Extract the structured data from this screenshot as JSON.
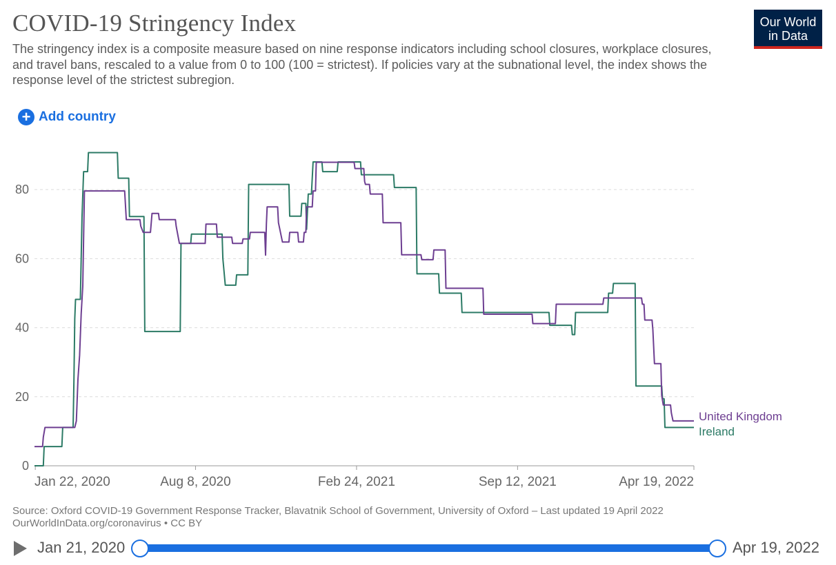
{
  "header": {
    "title": "COVID-19 Stringency Index",
    "subtitle": "The stringency index is a composite measure based on nine response indicators including school closures, workplace closures, and travel bans, rescaled to a value from 0 to 100 (100 = strictest). If policies vary at the subnational level, the index shows the response level of the strictest subregion.",
    "logo_line1": "Our World",
    "logo_line2": "in Data"
  },
  "controls": {
    "add_country_label": "Add country",
    "add_icon": "plus-circle-icon"
  },
  "footer": {
    "source_line1": "Source: Oxford COVID-19 Government Response Tracker, Blavatnik School of Government, University of Oxford – Last updated 19 April 2022",
    "source_line2": "OurWorldInData.org/coronavirus • CC BY"
  },
  "timeline": {
    "play_icon": "play-icon",
    "start_label": "Jan 21, 2020",
    "end_label": "Apr 19, 2022"
  },
  "colors": {
    "uk": "#6d3e91",
    "ireland": "#2b7a65",
    "accent": "#1a6fe0",
    "logo_bg": "#002147",
    "logo_bar": "#ce261e"
  },
  "chart_data": {
    "type": "line",
    "title": "COVID-19 Stringency Index",
    "xlabel": "",
    "ylabel": "",
    "x_range": [
      "2020-01-21",
      "2022-04-19"
    ],
    "ylim": [
      0,
      92
    ],
    "y_ticks": [
      0,
      20,
      40,
      60,
      80
    ],
    "x_ticks": [
      {
        "date": "2020-01-22",
        "label": "Jan 22, 2020"
      },
      {
        "date": "2020-08-08",
        "label": "Aug 8, 2020"
      },
      {
        "date": "2021-02-24",
        "label": "Feb 24, 2021"
      },
      {
        "date": "2021-09-12",
        "label": "Sep 12, 2021"
      },
      {
        "date": "2022-04-19",
        "label": "Apr 19, 2022"
      }
    ],
    "grid": "horizontal dashed",
    "legend": "line-end labels",
    "series": [
      {
        "name": "United Kingdom",
        "color": "#6d3e91",
        "points": [
          [
            "2020-01-21",
            5.56
          ],
          [
            "2020-01-31",
            5.56
          ],
          [
            "2020-02-01",
            8.3
          ],
          [
            "2020-02-03",
            11.1
          ],
          [
            "2020-03-11",
            11.1
          ],
          [
            "2020-03-13",
            13.0
          ],
          [
            "2020-03-15",
            25.0
          ],
          [
            "2020-03-17",
            32.0
          ],
          [
            "2020-03-19",
            44.0
          ],
          [
            "2020-03-21",
            52.0
          ],
          [
            "2020-03-23",
            79.6
          ],
          [
            "2020-05-12",
            79.6
          ],
          [
            "2020-05-14",
            71.3
          ],
          [
            "2020-05-31",
            71.3
          ],
          [
            "2020-06-01",
            69.4
          ],
          [
            "2020-06-04",
            67.6
          ],
          [
            "2020-06-13",
            67.6
          ],
          [
            "2020-06-15",
            73.1
          ],
          [
            "2020-06-23",
            73.1
          ],
          [
            "2020-06-24",
            71.3
          ],
          [
            "2020-07-14",
            71.3
          ],
          [
            "2020-07-15",
            69.4
          ],
          [
            "2020-07-19",
            64.4
          ],
          [
            "2020-08-20",
            64.4
          ],
          [
            "2020-08-21",
            70.0
          ],
          [
            "2020-09-03",
            70.0
          ],
          [
            "2020-09-04",
            66.2
          ],
          [
            "2020-09-22",
            66.2
          ],
          [
            "2020-09-23",
            64.4
          ],
          [
            "2020-10-05",
            64.4
          ],
          [
            "2020-10-06",
            65.7
          ],
          [
            "2020-10-14",
            65.7
          ],
          [
            "2020-10-15",
            67.6
          ],
          [
            "2020-11-02",
            67.6
          ],
          [
            "2020-11-03",
            61.0
          ],
          [
            "2020-11-04",
            70.0
          ],
          [
            "2020-11-05",
            75.0
          ],
          [
            "2020-11-18",
            75.0
          ],
          [
            "2020-11-19",
            70.4
          ],
          [
            "2020-11-24",
            64.8
          ],
          [
            "2020-12-02",
            64.8
          ],
          [
            "2020-12-03",
            67.6
          ],
          [
            "2020-12-13",
            67.6
          ],
          [
            "2020-12-14",
            64.8
          ],
          [
            "2020-12-20",
            64.8
          ],
          [
            "2020-12-21",
            67.6
          ],
          [
            "2020-12-23",
            67.6
          ],
          [
            "2020-12-24",
            75.0
          ],
          [
            "2020-12-31",
            75.0
          ],
          [
            "2021-01-01",
            79.6
          ],
          [
            "2021-01-04",
            79.6
          ],
          [
            "2021-01-05",
            87.9
          ],
          [
            "2021-02-21",
            87.9
          ],
          [
            "2021-02-22",
            86.1
          ],
          [
            "2021-03-05",
            86.1
          ],
          [
            "2021-03-06",
            82.4
          ],
          [
            "2021-03-07",
            81.5
          ],
          [
            "2021-03-12",
            81.5
          ],
          [
            "2021-03-13",
            78.7
          ],
          [
            "2021-03-28",
            78.7
          ],
          [
            "2021-03-29",
            70.4
          ],
          [
            "2021-04-20",
            70.4
          ],
          [
            "2021-04-21",
            61.1
          ],
          [
            "2021-05-15",
            61.1
          ],
          [
            "2021-05-16",
            59.7
          ],
          [
            "2021-05-30",
            59.7
          ],
          [
            "2021-05-31",
            62.5
          ],
          [
            "2021-06-14",
            62.5
          ],
          [
            "2021-06-15",
            51.4
          ],
          [
            "2021-07-31",
            51.4
          ],
          [
            "2021-08-01",
            43.9
          ],
          [
            "2021-09-30",
            43.9
          ],
          [
            "2021-10-01",
            41.2
          ],
          [
            "2021-10-29",
            41.2
          ],
          [
            "2021-10-30",
            46.8
          ],
          [
            "2021-12-27",
            46.8
          ],
          [
            "2021-12-28",
            48.6
          ],
          [
            "2022-02-13",
            48.6
          ],
          [
            "2022-02-14",
            46.8
          ],
          [
            "2022-02-16",
            46.8
          ],
          [
            "2022-02-17",
            42.2
          ],
          [
            "2022-02-26",
            42.2
          ],
          [
            "2022-02-27",
            39.4
          ],
          [
            "2022-03-01",
            29.6
          ],
          [
            "2022-03-09",
            29.6
          ],
          [
            "2022-03-10",
            20.4
          ],
          [
            "2022-03-12",
            17.6
          ],
          [
            "2022-03-21",
            17.6
          ],
          [
            "2022-03-22",
            15.3
          ],
          [
            "2022-03-24",
            13.0
          ],
          [
            "2022-04-19",
            13.0
          ]
        ]
      },
      {
        "name": "Ireland",
        "color": "#2b7a65",
        "points": [
          [
            "2020-01-21",
            0.0
          ],
          [
            "2020-02-01",
            0.0
          ],
          [
            "2020-02-02",
            5.56
          ],
          [
            "2020-02-24",
            5.56
          ],
          [
            "2020-02-25",
            11.1
          ],
          [
            "2020-03-09",
            11.1
          ],
          [
            "2020-03-10",
            25.0
          ],
          [
            "2020-03-11",
            42.6
          ],
          [
            "2020-03-12",
            48.2
          ],
          [
            "2020-03-18",
            48.2
          ],
          [
            "2020-03-20",
            72.0
          ],
          [
            "2020-03-22",
            85.2
          ],
          [
            "2020-03-27",
            85.2
          ],
          [
            "2020-03-28",
            90.7
          ],
          [
            "2020-05-03",
            90.7
          ],
          [
            "2020-05-04",
            83.3
          ],
          [
            "2020-05-17",
            83.3
          ],
          [
            "2020-05-18",
            72.2
          ],
          [
            "2020-06-05",
            72.2
          ],
          [
            "2020-06-06",
            38.9
          ],
          [
            "2020-07-20",
            38.9
          ],
          [
            "2020-07-21",
            64.4
          ],
          [
            "2020-08-02",
            64.4
          ],
          [
            "2020-08-03",
            67.1
          ],
          [
            "2020-09-10",
            67.1
          ],
          [
            "2020-09-11",
            60.0
          ],
          [
            "2020-09-14",
            52.3
          ],
          [
            "2020-09-27",
            52.3
          ],
          [
            "2020-09-28",
            55.3
          ],
          [
            "2020-10-12",
            55.3
          ],
          [
            "2020-10-13",
            81.5
          ],
          [
            "2020-12-02",
            81.5
          ],
          [
            "2020-12-03",
            72.3
          ],
          [
            "2020-12-17",
            72.3
          ],
          [
            "2020-12-18",
            76.0
          ],
          [
            "2020-12-23",
            76.0
          ],
          [
            "2020-12-24",
            68.5
          ],
          [
            "2020-12-26",
            78.7
          ],
          [
            "2020-12-30",
            78.7
          ],
          [
            "2021-01-01",
            88.0
          ],
          [
            "2021-01-12",
            88.0
          ],
          [
            "2021-01-13",
            85.2
          ],
          [
            "2021-01-31",
            85.2
          ],
          [
            "2021-02-01",
            88.0
          ],
          [
            "2021-03-01",
            88.0
          ],
          [
            "2021-03-02",
            84.3
          ],
          [
            "2021-04-11",
            84.3
          ],
          [
            "2021-04-12",
            80.6
          ],
          [
            "2021-05-09",
            80.6
          ],
          [
            "2021-05-10",
            55.6
          ],
          [
            "2021-06-06",
            55.6
          ],
          [
            "2021-06-07",
            50.0
          ],
          [
            "2021-07-04",
            50.0
          ],
          [
            "2021-07-05",
            44.4
          ],
          [
            "2021-10-21",
            44.4
          ],
          [
            "2021-10-22",
            40.7
          ],
          [
            "2021-11-18",
            40.7
          ],
          [
            "2021-11-19",
            38.0
          ],
          [
            "2021-11-22",
            38.0
          ],
          [
            "2021-11-23",
            44.4
          ],
          [
            "2022-01-02",
            44.4
          ],
          [
            "2022-01-03",
            50.0
          ],
          [
            "2022-01-08",
            50.0
          ],
          [
            "2022-01-09",
            52.8
          ],
          [
            "2022-02-05",
            52.8
          ],
          [
            "2022-02-06",
            23.1
          ],
          [
            "2022-03-10",
            23.1
          ],
          [
            "2022-03-11",
            19.4
          ],
          [
            "2022-03-13",
            19.4
          ],
          [
            "2022-03-14",
            11.1
          ],
          [
            "2022-04-19",
            11.1
          ]
        ]
      }
    ]
  }
}
